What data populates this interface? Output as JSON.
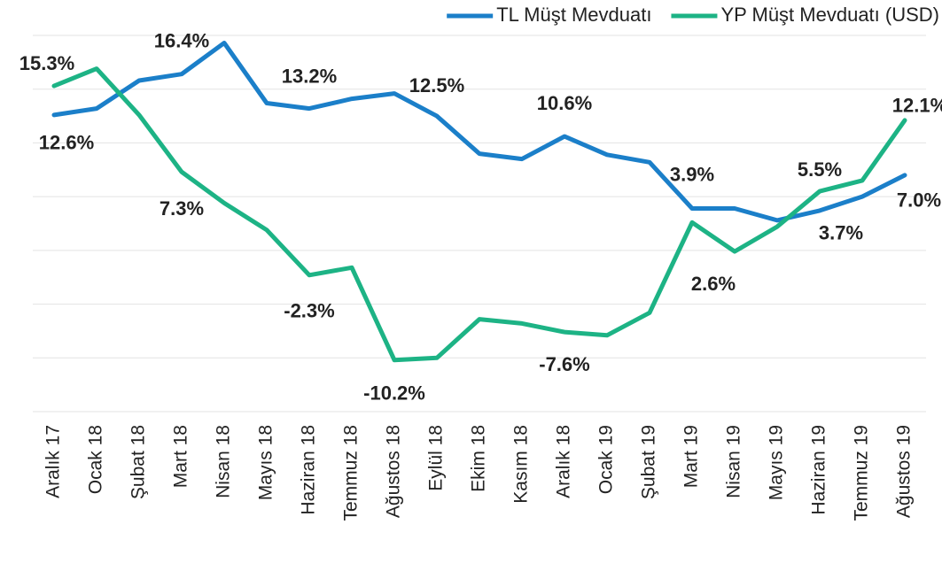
{
  "chart_data": {
    "type": "line",
    "categories": [
      "Aralık 17",
      "Ocak 18",
      "Şubat 18",
      "Mart 18",
      "Nisan 18",
      "Mayıs 18",
      "Haziran 18",
      "Temmuz 18",
      "Ağustos 18",
      "Eylül 18",
      "Ekim 18",
      "Kasım 18",
      "Aralık 18",
      "Ocak 19",
      "Şubat 19",
      "Mart 19",
      "Nisan 19",
      "Mayıs 19",
      "Haziran 19",
      "Temmuz 19",
      "Ağustos 19"
    ],
    "series": [
      {
        "name": "TL Müşt Mevduatı",
        "color": "#1b7fc9",
        "values": [
          12.6,
          13.2,
          15.8,
          16.4,
          19.3,
          13.7,
          13.2,
          14.1,
          14.6,
          12.5,
          9.0,
          8.5,
          10.6,
          8.9,
          8.2,
          3.9,
          3.9,
          2.8,
          3.7,
          5.0,
          7.0
        ],
        "value_labels": [
          "12.6%",
          null,
          null,
          "16.4%",
          null,
          null,
          "13.2%",
          null,
          null,
          "12.5%",
          null,
          null,
          "10.6%",
          null,
          null,
          "3.9%",
          null,
          null,
          "3.7%",
          null,
          "7.0%"
        ]
      },
      {
        "name": "YP Müşt Mevduatı (USD)",
        "color": "#1db385",
        "values": [
          15.3,
          16.9,
          12.6,
          7.3,
          4.4,
          1.9,
          -2.3,
          -1.6,
          -10.2,
          -10.0,
          -6.4,
          -6.8,
          -7.6,
          -7.9,
          -5.8,
          2.6,
          -0.1,
          2.2,
          5.5,
          6.5,
          12.1
        ],
        "value_labels": [
          "15.3%",
          null,
          null,
          "7.3%",
          null,
          null,
          "-2.3%",
          null,
          "-10.2%",
          null,
          null,
          null,
          "-7.6%",
          null,
          null,
          "2.6%",
          null,
          null,
          "5.5%",
          null,
          "12.1%"
        ]
      }
    ],
    "ylim": [
      -15,
      20
    ],
    "yticks": [
      -15,
      -10,
      -5,
      0,
      5,
      10,
      15,
      20
    ],
    "grid": true,
    "legend": "top-right"
  }
}
